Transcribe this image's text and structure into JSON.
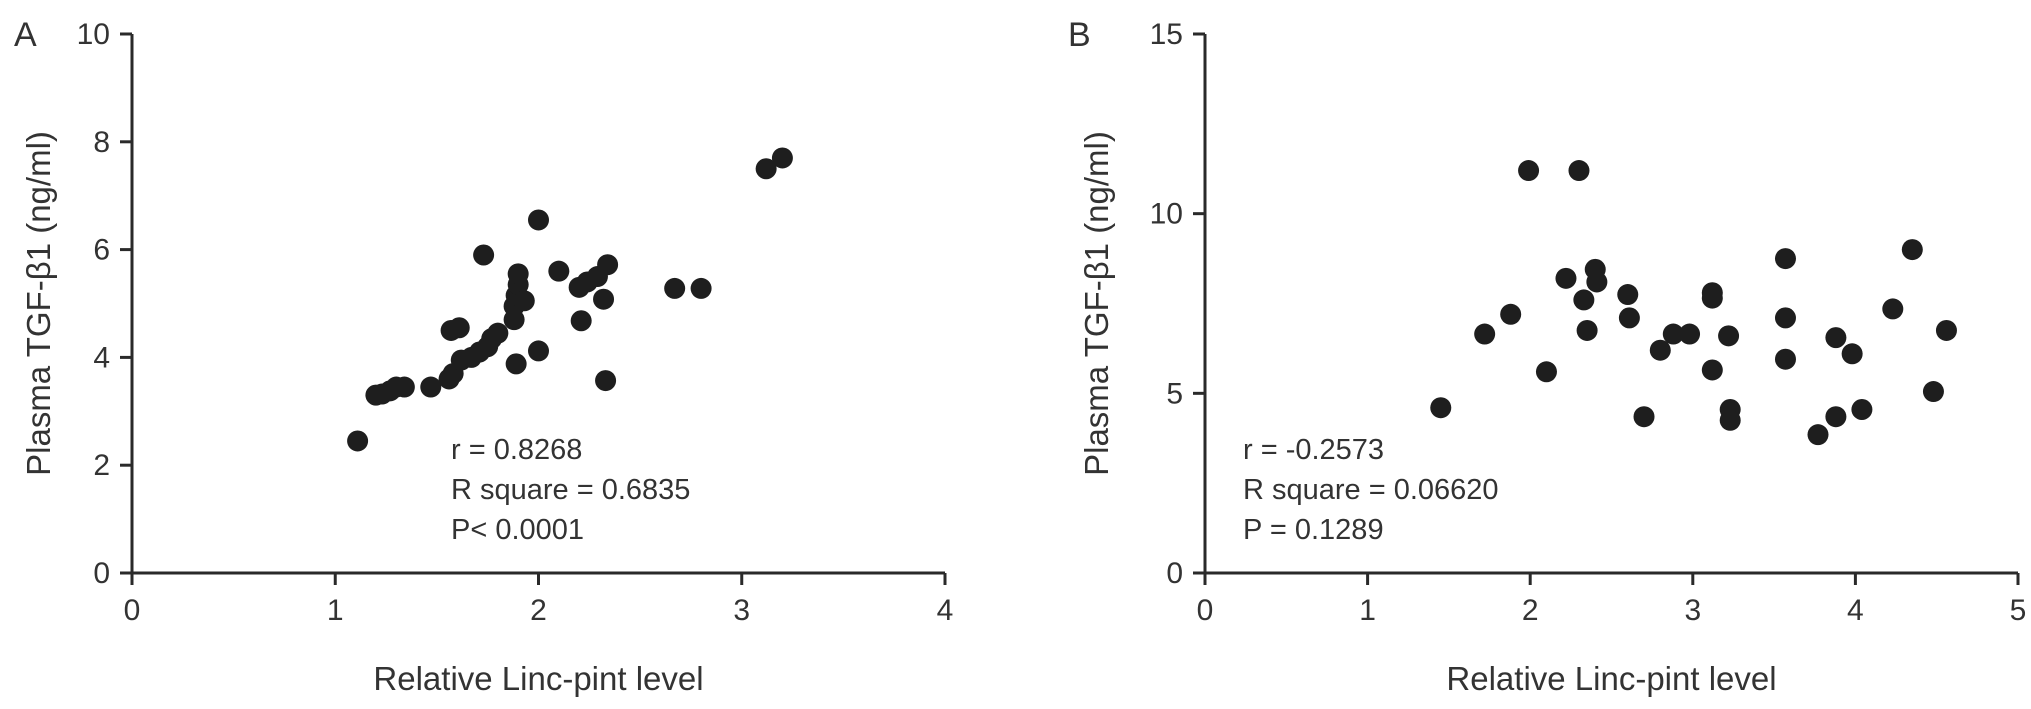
{
  "chart_data": [
    {
      "type": "scatter",
      "panel_label": "A",
      "xlabel": "Relative Linc-pint level",
      "ylabel": "Plasma TGF-β1 (ng/ml)",
      "xlim": [
        0,
        4
      ],
      "ylim": [
        0,
        10
      ],
      "xticks": [
        "0",
        "1",
        "2",
        "3",
        "4"
      ],
      "yticks": [
        "0",
        "2",
        "4",
        "6",
        "8",
        "10"
      ],
      "grid": false,
      "annotations": [
        "r = 0.8268",
        "R square = 0.6835",
        "P< 0.0001"
      ],
      "points": [
        {
          "x": 1.11,
          "y": 2.45
        },
        {
          "x": 1.2,
          "y": 3.3
        },
        {
          "x": 1.23,
          "y": 3.32
        },
        {
          "x": 1.27,
          "y": 3.38
        },
        {
          "x": 1.3,
          "y": 3.45
        },
        {
          "x": 1.34,
          "y": 3.45
        },
        {
          "x": 1.47,
          "y": 3.45
        },
        {
          "x": 1.56,
          "y": 3.6
        },
        {
          "x": 1.58,
          "y": 3.7
        },
        {
          "x": 1.57,
          "y": 4.5
        },
        {
          "x": 1.61,
          "y": 4.55
        },
        {
          "x": 1.62,
          "y": 3.95
        },
        {
          "x": 1.67,
          "y": 4.0
        },
        {
          "x": 1.71,
          "y": 4.1
        },
        {
          "x": 1.75,
          "y": 4.2
        },
        {
          "x": 1.77,
          "y": 4.35
        },
        {
          "x": 1.8,
          "y": 4.45
        },
        {
          "x": 1.73,
          "y": 5.9
        },
        {
          "x": 1.88,
          "y": 4.7
        },
        {
          "x": 1.89,
          "y": 3.88
        },
        {
          "x": 1.88,
          "y": 4.95
        },
        {
          "x": 1.89,
          "y": 5.15
        },
        {
          "x": 1.9,
          "y": 5.35
        },
        {
          "x": 1.9,
          "y": 5.55
        },
        {
          "x": 1.93,
          "y": 5.05
        },
        {
          "x": 2.0,
          "y": 6.55
        },
        {
          "x": 2.0,
          "y": 4.12
        },
        {
          "x": 2.1,
          "y": 5.6
        },
        {
          "x": 2.2,
          "y": 5.3
        },
        {
          "x": 2.21,
          "y": 4.68
        },
        {
          "x": 2.24,
          "y": 5.4
        },
        {
          "x": 2.29,
          "y": 5.5
        },
        {
          "x": 2.32,
          "y": 5.08
        },
        {
          "x": 2.34,
          "y": 5.72
        },
        {
          "x": 2.33,
          "y": 3.57
        },
        {
          "x": 2.67,
          "y": 5.28
        },
        {
          "x": 2.8,
          "y": 5.28
        },
        {
          "x": 3.12,
          "y": 7.5
        },
        {
          "x": 3.2,
          "y": 7.7
        }
      ]
    },
    {
      "type": "scatter",
      "panel_label": "B",
      "xlabel": "Relative Linc-pint level",
      "ylabel": "Plasma TGF-β1 (ng/ml)",
      "xlim": [
        0,
        5
      ],
      "ylim": [
        0,
        15
      ],
      "xticks": [
        "0",
        "1",
        "2",
        "3",
        "4",
        "5"
      ],
      "yticks": [
        "0",
        "5",
        "10",
        "15"
      ],
      "grid": false,
      "annotations": [
        "r = -0.2573",
        "R square = 0.06620",
        "P = 0.1289"
      ],
      "points": [
        {
          "x": 1.45,
          "y": 4.6
        },
        {
          "x": 1.72,
          "y": 6.65
        },
        {
          "x": 1.88,
          "y": 7.2
        },
        {
          "x": 1.99,
          "y": 11.2
        },
        {
          "x": 2.1,
          "y": 5.6
        },
        {
          "x": 2.22,
          "y": 8.2
        },
        {
          "x": 2.3,
          "y": 11.2
        },
        {
          "x": 2.33,
          "y": 7.6
        },
        {
          "x": 2.35,
          "y": 6.75
        },
        {
          "x": 2.4,
          "y": 8.45
        },
        {
          "x": 2.41,
          "y": 8.1
        },
        {
          "x": 2.6,
          "y": 7.75
        },
        {
          "x": 2.61,
          "y": 7.1
        },
        {
          "x": 2.7,
          "y": 4.35
        },
        {
          "x": 2.8,
          "y": 6.2
        },
        {
          "x": 2.88,
          "y": 6.65
        },
        {
          "x": 2.98,
          "y": 6.65
        },
        {
          "x": 3.12,
          "y": 7.8
        },
        {
          "x": 3.12,
          "y": 7.65
        },
        {
          "x": 3.12,
          "y": 5.65
        },
        {
          "x": 3.22,
          "y": 6.6
        },
        {
          "x": 3.23,
          "y": 4.55
        },
        {
          "x": 3.23,
          "y": 4.25
        },
        {
          "x": 3.57,
          "y": 8.75
        },
        {
          "x": 3.57,
          "y": 7.1
        },
        {
          "x": 3.57,
          "y": 5.95
        },
        {
          "x": 3.77,
          "y": 3.85
        },
        {
          "x": 3.88,
          "y": 6.55
        },
        {
          "x": 3.88,
          "y": 4.35
        },
        {
          "x": 3.98,
          "y": 6.1
        },
        {
          "x": 4.04,
          "y": 4.55
        },
        {
          "x": 4.23,
          "y": 7.35
        },
        {
          "x": 4.35,
          "y": 9.0
        },
        {
          "x": 4.48,
          "y": 5.05
        },
        {
          "x": 4.56,
          "y": 6.75
        }
      ]
    }
  ]
}
